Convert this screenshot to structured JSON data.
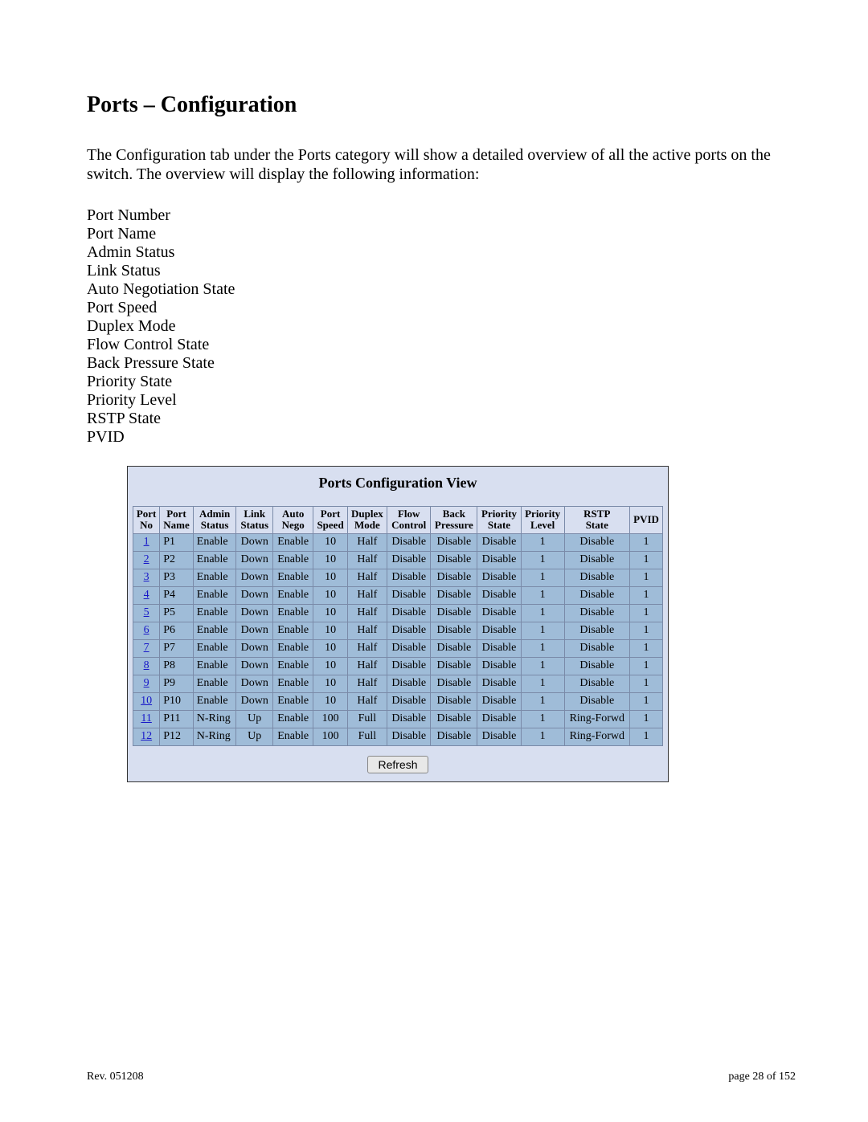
{
  "heading": "Ports – Configuration",
  "intro": "The Configuration tab under the Ports category will show a detailed overview of all the active ports on the switch.  The overview will display the following information:",
  "fields": [
    "Port Number",
    "Port Name",
    "Admin Status",
    "Link Status",
    "Auto Negotiation State",
    "Port Speed",
    "Duplex Mode",
    "Flow Control State",
    "Back Pressure State",
    "Priority State",
    "Priority Level",
    "RSTP State",
    "PVID"
  ],
  "panel": {
    "title": "Ports Configuration View",
    "title_fontsize": 18,
    "background": "#d8dff0",
    "cell_background": "#9fbcd8",
    "border_color": "#7a8aa8",
    "link_color": "#1818c8",
    "columns": [
      "Port\nNo",
      "Port\nName",
      "Admin\nStatus",
      "Link\nStatus",
      "Auto\nNego",
      "Port\nSpeed",
      "Duplex\nMode",
      "Flow\nControl",
      "Back\nPressure",
      "Priority\nState",
      "Priority\nLevel",
      "RSTP\nState",
      "PVID"
    ],
    "rows": [
      [
        "1",
        "P1",
        "Enable",
        "Down",
        "Enable",
        "10",
        "Half",
        "Disable",
        "Disable",
        "Disable",
        "1",
        "Disable",
        "1"
      ],
      [
        "2",
        "P2",
        "Enable",
        "Down",
        "Enable",
        "10",
        "Half",
        "Disable",
        "Disable",
        "Disable",
        "1",
        "Disable",
        "1"
      ],
      [
        "3",
        "P3",
        "Enable",
        "Down",
        "Enable",
        "10",
        "Half",
        "Disable",
        "Disable",
        "Disable",
        "1",
        "Disable",
        "1"
      ],
      [
        "4",
        "P4",
        "Enable",
        "Down",
        "Enable",
        "10",
        "Half",
        "Disable",
        "Disable",
        "Disable",
        "1",
        "Disable",
        "1"
      ],
      [
        "5",
        "P5",
        "Enable",
        "Down",
        "Enable",
        "10",
        "Half",
        "Disable",
        "Disable",
        "Disable",
        "1",
        "Disable",
        "1"
      ],
      [
        "6",
        "P6",
        "Enable",
        "Down",
        "Enable",
        "10",
        "Half",
        "Disable",
        "Disable",
        "Disable",
        "1",
        "Disable",
        "1"
      ],
      [
        "7",
        "P7",
        "Enable",
        "Down",
        "Enable",
        "10",
        "Half",
        "Disable",
        "Disable",
        "Disable",
        "1",
        "Disable",
        "1"
      ],
      [
        "8",
        "P8",
        "Enable",
        "Down",
        "Enable",
        "10",
        "Half",
        "Disable",
        "Disable",
        "Disable",
        "1",
        "Disable",
        "1"
      ],
      [
        "9",
        "P9",
        "Enable",
        "Down",
        "Enable",
        "10",
        "Half",
        "Disable",
        "Disable",
        "Disable",
        "1",
        "Disable",
        "1"
      ],
      [
        "10",
        "P10",
        "Enable",
        "Down",
        "Enable",
        "10",
        "Half",
        "Disable",
        "Disable",
        "Disable",
        "1",
        "Disable",
        "1"
      ],
      [
        "11",
        "P11",
        "N-Ring",
        "Up",
        "Enable",
        "100",
        "Full",
        "Disable",
        "Disable",
        "Disable",
        "1",
        "Ring-Forwd",
        "1"
      ],
      [
        "12",
        "P12",
        "N-Ring",
        "Up",
        "Enable",
        "100",
        "Full",
        "Disable",
        "Disable",
        "Disable",
        "1",
        "Ring-Forwd",
        "1"
      ]
    ],
    "refresh_label": "Refresh"
  },
  "footer": {
    "rev": "Rev.  051208",
    "page": "page 28 of 152"
  }
}
